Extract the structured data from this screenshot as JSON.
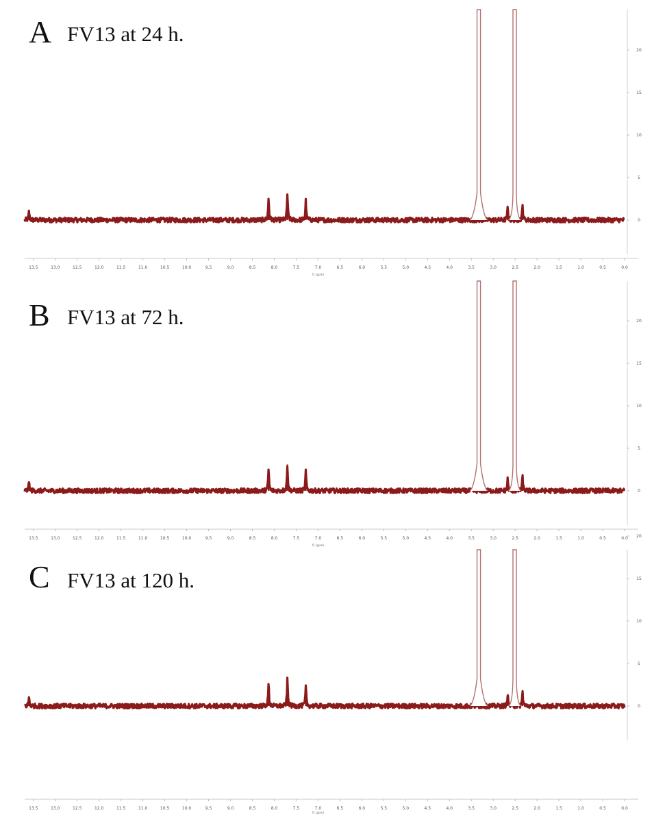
{
  "chart_data": [
    {
      "type": "line",
      "panel_letter": "A",
      "title": "FV13 at 24 h.",
      "xlabel": "f1 (ppm)",
      "ylabel": "",
      "xlim": [
        13.7,
        0.0
      ],
      "ylim": [
        -3,
        24
      ],
      "x_axis_reversed": true,
      "x_ticks": [
        "13.5",
        "13.0",
        "12.5",
        "12.0",
        "11.5",
        "11.0",
        "10.5",
        "10.0",
        "9.5",
        "9.0",
        "8.5",
        "8.0",
        "7.5",
        "7.0",
        "6.5",
        "6.0",
        "5.5",
        "5.0",
        "4.5",
        "4.0",
        "3.5",
        "3.0",
        "2.5",
        "2.0",
        "1.5",
        "1.0",
        "0.5",
        "0.0"
      ],
      "y_ticks": [
        "0",
        "5",
        "10",
        "15",
        "20"
      ],
      "grid": false,
      "series": [
        {
          "color": "#8b1a1a",
          "peaks": [
            {
              "x": 13.6,
              "y": 1.0
            },
            {
              "x": 8.13,
              "y": 2.6
            },
            {
              "x": 7.7,
              "y": 3.1
            },
            {
              "x": 7.28,
              "y": 2.3
            },
            {
              "x": 3.33,
              "y": 24
            },
            {
              "x": 2.67,
              "y": 1.4
            },
            {
              "x": 2.51,
              "y": 24
            },
            {
              "x": 2.33,
              "y": 1.7
            }
          ]
        }
      ]
    },
    {
      "type": "line",
      "panel_letter": "B",
      "title": "FV13 at 72 h.",
      "xlabel": "f1 (ppm)",
      "ylabel": "",
      "xlim": [
        13.7,
        0.0
      ],
      "ylim": [
        -3,
        24
      ],
      "x_axis_reversed": true,
      "x_ticks": [
        "13.5",
        "13.0",
        "12.5",
        "12.0",
        "11.5",
        "11.0",
        "10.5",
        "10.0",
        "9.5",
        "9.0",
        "8.5",
        "8.0",
        "7.5",
        "7.0",
        "6.5",
        "6.0",
        "5.5",
        "5.0",
        "4.5",
        "4.0",
        "3.5",
        "3.0",
        "2.5",
        "2.0",
        "1.5",
        "1.0",
        "0.5",
        "0.0"
      ],
      "y_ticks": [
        "0",
        "5",
        "10",
        "15",
        "20"
      ],
      "grid": false,
      "series": [
        {
          "color": "#8b1a1a",
          "peaks": [
            {
              "x": 13.6,
              "y": 1.0
            },
            {
              "x": 8.13,
              "y": 2.6
            },
            {
              "x": 7.7,
              "y": 3.1
            },
            {
              "x": 7.28,
              "y": 2.3
            },
            {
              "x": 3.33,
              "y": 24
            },
            {
              "x": 2.67,
              "y": 1.4
            },
            {
              "x": 2.51,
              "y": 24
            },
            {
              "x": 2.33,
              "y": 1.7
            }
          ]
        }
      ]
    },
    {
      "type": "line",
      "panel_letter": "C",
      "title": "FV13 at 120 h.",
      "xlabel": "f1 (ppm)",
      "ylabel": "",
      "xlim": [
        13.7,
        0.0
      ],
      "ylim": [
        -3,
        24
      ],
      "x_axis_reversed": true,
      "x_ticks": [
        "13.5",
        "13.0",
        "12.5",
        "12.0",
        "11.5",
        "11.0",
        "10.5",
        "10.0",
        "9.5",
        "9.0",
        "8.5",
        "8.0",
        "7.5",
        "7.0",
        "6.5",
        "6.0",
        "5.5",
        "5.0",
        "4.5",
        "4.0",
        "3.5",
        "3.0",
        "2.5",
        "2.0",
        "1.5",
        "1.0",
        "0.5",
        "0.0"
      ],
      "y_ticks": [
        "0",
        "5",
        "10",
        "15",
        "20"
      ],
      "grid": false,
      "series": [
        {
          "color": "#8b1a1a",
          "peaks": [
            {
              "x": 13.6,
              "y": 1.0
            },
            {
              "x": 8.13,
              "y": 2.6
            },
            {
              "x": 7.7,
              "y": 3.1
            },
            {
              "x": 7.28,
              "y": 2.3
            },
            {
              "x": 3.33,
              "y": 24
            },
            {
              "x": 2.67,
              "y": 1.4
            },
            {
              "x": 2.51,
              "y": 24
            },
            {
              "x": 2.33,
              "y": 1.7
            }
          ]
        }
      ]
    }
  ]
}
